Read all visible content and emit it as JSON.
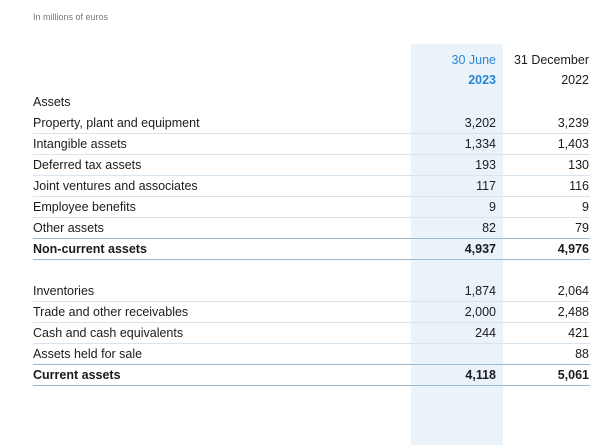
{
  "note": "In millions of euros",
  "columns": [
    {
      "line1": "30 June",
      "line2": "2023"
    },
    {
      "line1": "31 December",
      "line2": "2022"
    }
  ],
  "sections": [
    {
      "heading": "Assets",
      "rows": [
        {
          "label": "Property, plant and equipment",
          "values": [
            "3,202",
            "3,239"
          ]
        },
        {
          "label": "Intangible assets",
          "values": [
            "1,334",
            "1,403"
          ]
        },
        {
          "label": "Deferred tax assets",
          "values": [
            "193",
            "130"
          ]
        },
        {
          "label": "Joint ventures and associates",
          "values": [
            "117",
            "116"
          ]
        },
        {
          "label": "Employee benefits",
          "values": [
            "9",
            "9"
          ]
        },
        {
          "label": "Other assets",
          "values": [
            "82",
            "79"
          ]
        }
      ],
      "total": {
        "label": "Non-current assets",
        "values": [
          "4,937",
          "4,976"
        ]
      }
    },
    {
      "heading": null,
      "rows": [
        {
          "label": "Inventories",
          "values": [
            "1,874",
            "2,064"
          ]
        },
        {
          "label": "Trade and other receivables",
          "values": [
            "2,000",
            "2,488"
          ]
        },
        {
          "label": "Cash and cash equivalents",
          "values": [
            "244",
            "421"
          ]
        },
        {
          "label": "Assets held for sale",
          "values": [
            null,
            "88"
          ]
        }
      ],
      "total": {
        "label": "Current assets",
        "values": [
          "4,118",
          "5,061"
        ]
      }
    }
  ]
}
